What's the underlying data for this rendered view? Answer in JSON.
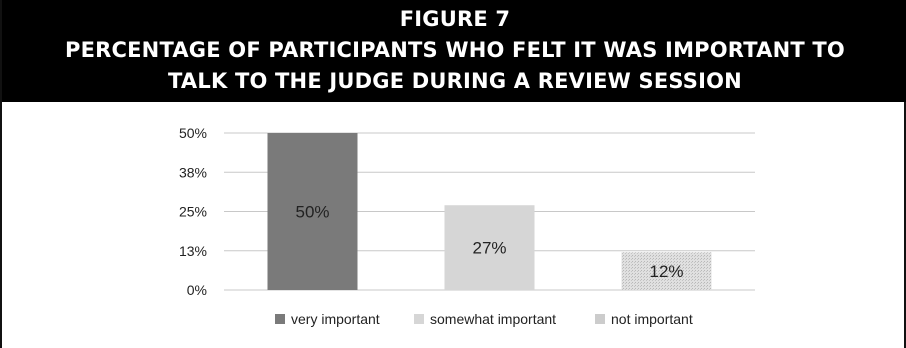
{
  "figure": {
    "label": "FIGURE 7",
    "title_lines": [
      "PERCENTAGE OF PARTICIPANTS WHO FELT IT WAS IMPORTANT TO",
      "TALK TO THE JUDGE DURING A REVIEW SESSION"
    ]
  },
  "chart_data": {
    "type": "bar",
    "title": "PERCENTAGE OF PARTICIPANTS WHO FELT IT WAS IMPORTANT TO TALK TO THE JUDGE DURING A REVIEW SESSION",
    "categories": [
      "very important",
      "somewhat important",
      "not important"
    ],
    "values": [
      50,
      27,
      12
    ],
    "data_labels": [
      "50%",
      "27%",
      "12%"
    ],
    "ylim": [
      0,
      50
    ],
    "yticks": [
      0,
      12.5,
      25,
      37.5,
      50
    ],
    "ytick_labels": [
      "0%",
      "13%",
      "25%",
      "38%",
      "50%"
    ],
    "xlabel": "",
    "ylabel": "",
    "grid": true,
    "legend": {
      "position": "bottom",
      "entries": [
        "very important",
        "somewhat important",
        "not important"
      ]
    },
    "colors": [
      "#7a7a7a",
      "#d6d6d6",
      "#d9d9d9"
    ]
  }
}
